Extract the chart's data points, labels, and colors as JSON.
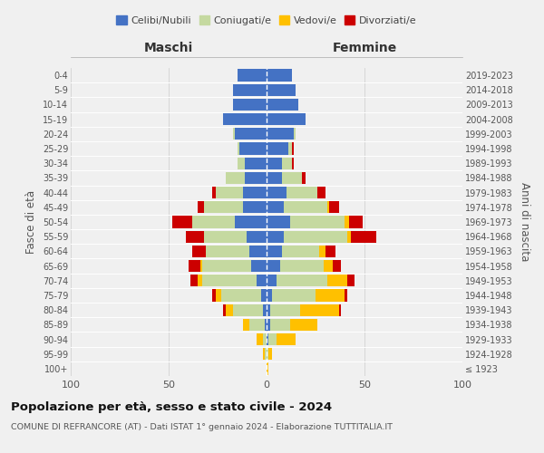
{
  "age_groups": [
    "100+",
    "95-99",
    "90-94",
    "85-89",
    "80-84",
    "75-79",
    "70-74",
    "65-69",
    "60-64",
    "55-59",
    "50-54",
    "45-49",
    "40-44",
    "35-39",
    "30-34",
    "25-29",
    "20-24",
    "15-19",
    "10-14",
    "5-9",
    "0-4"
  ],
  "birth_years": [
    "≤ 1923",
    "1924-1928",
    "1929-1933",
    "1934-1938",
    "1939-1943",
    "1944-1948",
    "1949-1953",
    "1954-1958",
    "1959-1963",
    "1964-1968",
    "1969-1973",
    "1974-1978",
    "1979-1983",
    "1984-1988",
    "1989-1993",
    "1994-1998",
    "1999-2003",
    "2004-2008",
    "2009-2013",
    "2014-2018",
    "2019-2023"
  ],
  "colors": {
    "celibi": "#4472c4",
    "coniugati": "#c5d9a0",
    "vedovi": "#ffc000",
    "divorziati": "#cc0000"
  },
  "maschi": {
    "celibi": [
      0,
      0,
      0,
      1,
      2,
      3,
      5,
      8,
      9,
      10,
      16,
      12,
      12,
      11,
      11,
      14,
      16,
      22,
      17,
      17,
      15
    ],
    "coniugati": [
      0,
      1,
      2,
      8,
      15,
      20,
      28,
      25,
      22,
      22,
      22,
      20,
      14,
      10,
      4,
      1,
      1,
      0,
      0,
      0,
      0
    ],
    "vedovi": [
      0,
      1,
      3,
      3,
      4,
      3,
      2,
      1,
      0,
      0,
      0,
      0,
      0,
      0,
      0,
      0,
      0,
      0,
      0,
      0,
      0
    ],
    "divorziati": [
      0,
      0,
      0,
      0,
      1,
      2,
      4,
      6,
      7,
      9,
      10,
      3,
      2,
      0,
      0,
      0,
      0,
      0,
      0,
      0,
      0
    ]
  },
  "femmine": {
    "celibi": [
      0,
      0,
      1,
      2,
      2,
      3,
      5,
      7,
      8,
      9,
      12,
      9,
      10,
      8,
      8,
      11,
      14,
      20,
      16,
      15,
      13
    ],
    "coniugati": [
      0,
      1,
      4,
      10,
      15,
      22,
      26,
      22,
      19,
      32,
      28,
      22,
      16,
      10,
      5,
      2,
      1,
      0,
      0,
      0,
      0
    ],
    "vedovi": [
      1,
      2,
      10,
      14,
      20,
      15,
      10,
      5,
      3,
      2,
      2,
      1,
      0,
      0,
      0,
      0,
      0,
      0,
      0,
      0,
      0
    ],
    "divorziati": [
      0,
      0,
      0,
      0,
      1,
      1,
      4,
      4,
      5,
      13,
      7,
      5,
      4,
      2,
      1,
      1,
      0,
      0,
      0,
      0,
      0
    ]
  },
  "title": "Popolazione per età, sesso e stato civile - 2024",
  "subtitle": "COMUNE DI REFRANCORE (AT) - Dati ISTAT 1° gennaio 2024 - Elaborazione TUTTITALIA.IT",
  "xlabel_left": "Maschi",
  "xlabel_right": "Femmine",
  "ylabel_left": "Fasce di età",
  "ylabel_right": "Anni di nascita",
  "xlim": 100,
  "background_color": "#f0f0f0",
  "legend_labels": [
    "Celibi/Nubili",
    "Coniugati/e",
    "Vedovi/e",
    "Divorziati/e"
  ]
}
